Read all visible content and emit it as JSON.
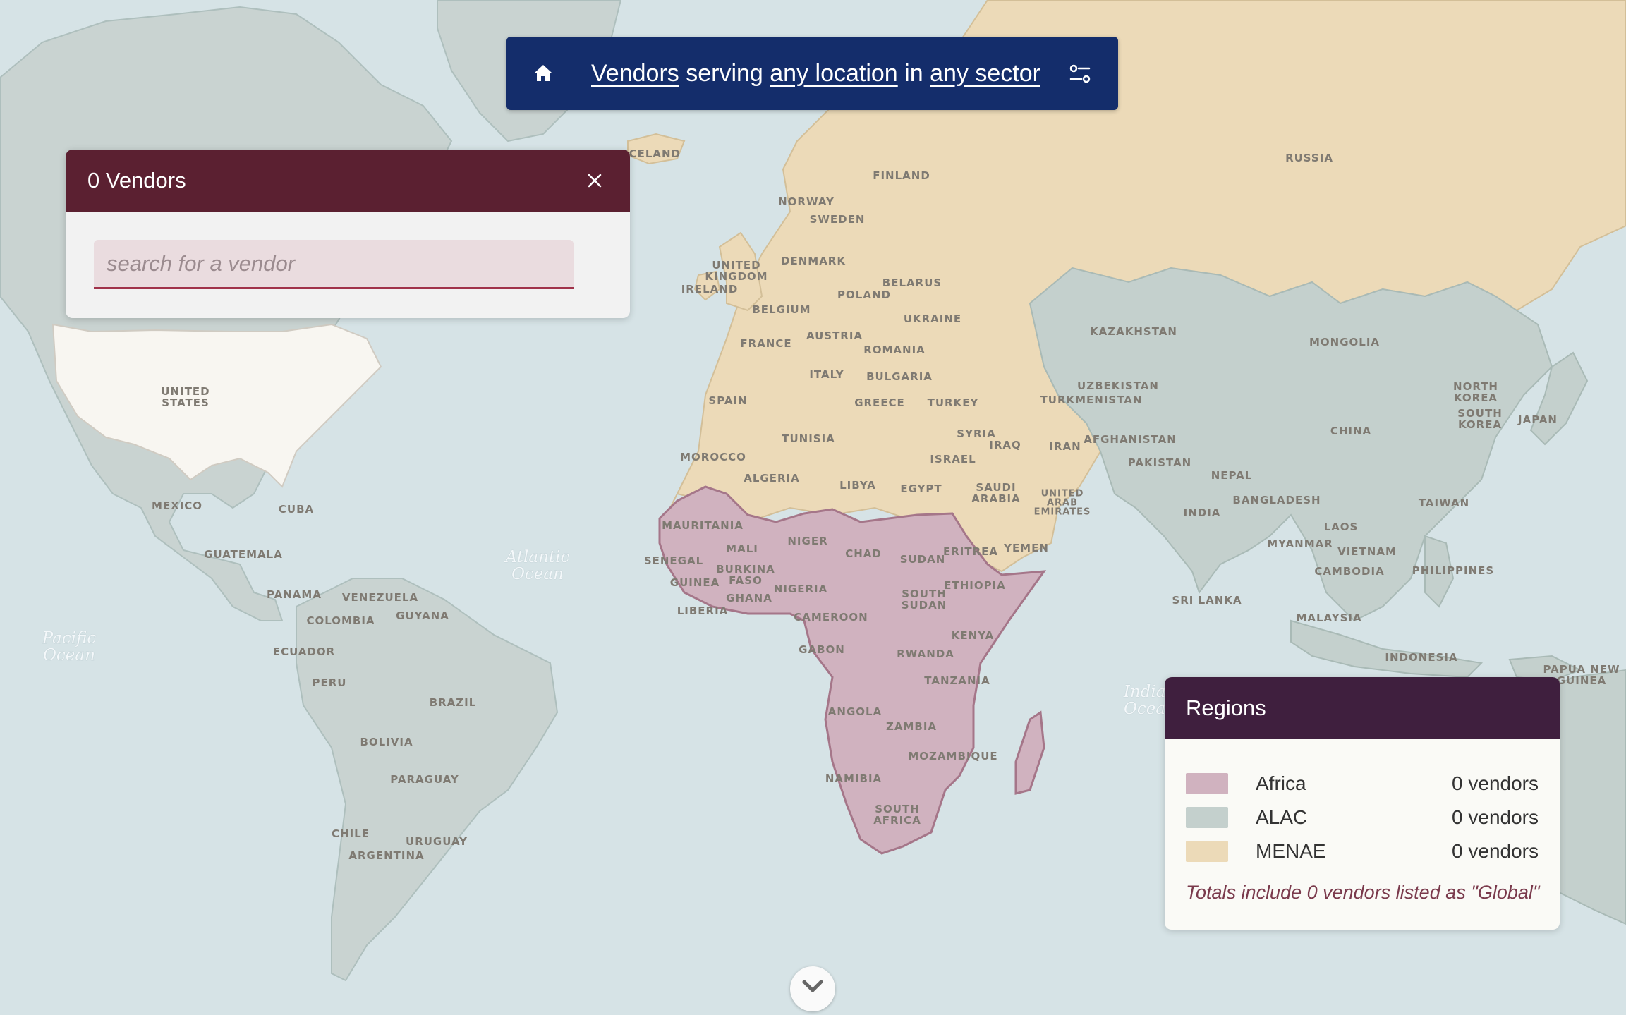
{
  "colors": {
    "ocean": "#d6e3e6",
    "land_default": "#c9d3d1",
    "africa": "#d0b2bf",
    "alac": "#c4d0cd",
    "menae": "#ecdab8",
    "usa": "#f8f6f1",
    "query_bar": "#142d6b",
    "vendors_header": "#5b2031",
    "legend_header": "#3f1f3e"
  },
  "query": {
    "home_icon": "home-icon",
    "subject": "Vendors",
    "serving": " serving ",
    "location": "any location",
    "in": " in ",
    "sector": "any sector",
    "filter_icon": "sliders-icon"
  },
  "vendors_panel": {
    "title": "0 Vendors",
    "close_icon": "close-icon",
    "search_placeholder": "search for a vendor"
  },
  "legend": {
    "title": "Regions",
    "rows": [
      {
        "name": "Africa",
        "count": "0 vendors",
        "color": "#d0b2bf"
      },
      {
        "name": "ALAC",
        "count": "0 vendors",
        "color": "#c4d0cd"
      },
      {
        "name": "MENAE",
        "count": "0 vendors",
        "color": "#ecdab8"
      }
    ],
    "note": "Totals include 0 vendors listed as \"Global\""
  },
  "map_labels": {
    "iceland": "ICELAND",
    "finland": "FINLAND",
    "norway": "NORWAY",
    "sweden": "SWEDEN",
    "russia": "RUSSIA",
    "denmark": "DENMARK",
    "united_kingdom": "UNITED\nKINGDOM",
    "ireland": "IRELAND",
    "belarus": "BELARUS",
    "poland": "POLAND",
    "belgium": "BELGIUM",
    "ukraine": "UKRAINE",
    "france": "FRANCE",
    "austria": "AUSTRIA",
    "romania": "ROMANIA",
    "kazakhstan": "KAZAKHSTAN",
    "mongolia": "MONGOLIA",
    "italy": "ITALY",
    "bulgaria": "BULGARIA",
    "spain": "SPAIN",
    "greece": "GREECE",
    "turkey": "TURKEY",
    "uzbekistan": "UZBEKISTAN",
    "turkmenistan": "TURKMENISTAN",
    "north_korea": "NORTH\nKOREA",
    "south_korea": "SOUTH\nKOREA",
    "japan": "JAPAN",
    "china": "CHINA",
    "tunisia": "TUNISIA",
    "syria": "SYRIA",
    "iraq": "IRAQ",
    "iran": "IRAN",
    "afghanistan": "AFGHANISTAN",
    "morocco": "MOROCCO",
    "israel": "ISRAEL",
    "pakistan": "PAKISTAN",
    "algeria": "ALGERIA",
    "libya": "LIBYA",
    "egypt": "EGYPT",
    "saudi_arabia": "SAUDI\nARABIA",
    "uae": "UNITED\nARAB\nEMIRATES",
    "nepal": "NEPAL",
    "india": "INDIA",
    "bangladesh": "BANGLADESH",
    "taiwan": "TAIWAN",
    "mauritania": "MAURITANIA",
    "mali": "MALI",
    "niger": "NIGER",
    "chad": "CHAD",
    "sudan": "SUDAN",
    "eritrea": "ERITREA",
    "yemen": "YEMEN",
    "myanmar": "MYANMAR",
    "laos": "LAOS",
    "vietnam": "VIETNAM",
    "senegal": "SENEGAL",
    "burkina_faso": "BURKINA\nFASO",
    "cambodia": "CAMBODIA",
    "philippines": "PHILIPPINES",
    "guinea": "GUINEA",
    "ghana": "GHANA",
    "nigeria": "NIGERIA",
    "south_sudan": "SOUTH\nSUDAN",
    "ethiopia": "ETHIOPIA",
    "liberia": "LIBERIA",
    "sri_lanka": "SRI LANKA",
    "cameroon": "CAMEROON",
    "malaysia": "MALAYSIA",
    "kenya": "KENYA",
    "gabon": "GABON",
    "rwanda": "RWANDA",
    "indonesia": "INDONESIA",
    "papua_new_guinea": "PAPUA NEW\nGUINEA",
    "tanzania": "TANZANIA",
    "angola": "ANGOLA",
    "zambia": "ZAMBIA",
    "mozambique": "MOZAMBIQUE",
    "namibia": "NAMIBIA",
    "south_africa": "SOUTH\nAFRICA",
    "united_states": "UNITED\nSTATES",
    "mexico": "MEXICO",
    "cuba": "CUBA",
    "guatemala": "GUATEMALA",
    "panama": "PANAMA",
    "venezuela": "VENEZUELA",
    "guyana": "GUYANA",
    "colombia": "COLOMBIA",
    "ecuador": "ECUADOR",
    "peru": "PERU",
    "brazil": "BRAZIL",
    "bolivia": "BOLIVIA",
    "paraguay": "PARAGUAY",
    "chile": "CHILE",
    "uruguay": "URUGUAY",
    "argentina": "ARGENTINA"
  },
  "ocean_labels": {
    "atlantic": "Atlantic\nOcean",
    "pacific": "Pacific\nOcean",
    "indian": "Indian\nOcean"
  },
  "scroll_hint_icon": "chevron-down-icon"
}
